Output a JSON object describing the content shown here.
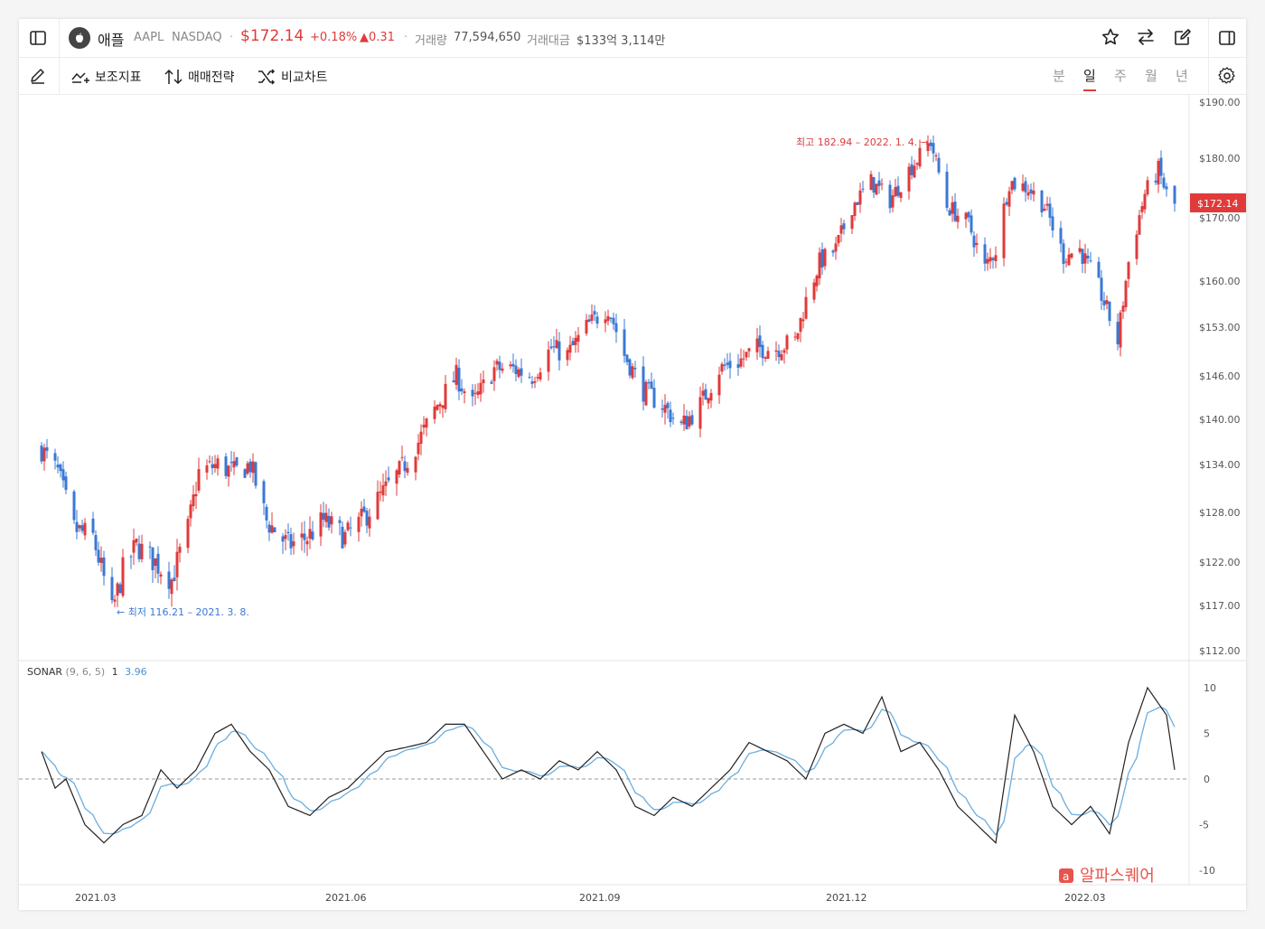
{
  "header": {
    "name": "애플",
    "ticker": "AAPL",
    "exchange": "NASDAQ",
    "price": "$172.14",
    "change_pct": "+0.18%",
    "change_abs": "▲0.31",
    "volume_label": "거래량",
    "volume": "77,594,650",
    "value_label": "거래대금",
    "value": "$133억 3,114만"
  },
  "toolbar": {
    "indicator_label": "보조지표",
    "strategy_label": "매매전략",
    "compare_label": "비교차트",
    "periods": [
      "분",
      "일",
      "주",
      "월",
      "년"
    ],
    "active_period": "일"
  },
  "price_axis": [
    "$190.00",
    "$180.00",
    "$170.00",
    "$160.00",
    "$153.00",
    "$146.00",
    "$140.00",
    "$134.00",
    "$128.00",
    "$122.00",
    "$117.00",
    "$112.00"
  ],
  "current_price_tag": "$172.14",
  "annotations": {
    "high": "최고 182.94 – 2022. 1. 4.",
    "low": "최저 116.21 – 2021. 3. 8."
  },
  "indicator": {
    "name": "SONAR",
    "params": "(9, 6, 5)",
    "value1": "1",
    "value2": "3.96",
    "axis": [
      "10",
      "5",
      "0",
      "-5",
      "-10"
    ]
  },
  "date_axis": [
    "2021.03",
    "2021.06",
    "2021.09",
    "2021.12",
    "2022.03"
  ],
  "watermark": "알파스퀘어",
  "colors": {
    "up": "#e03a3a",
    "down": "#3a78d4",
    "sonar": "#222222",
    "signal": "#6aaee0"
  },
  "chart_data": {
    "type": "candlestick",
    "price_ylim": [
      112,
      190
    ],
    "price_anchors": [
      [
        "2021-02-10",
        136
      ],
      [
        "2021-02-16",
        133
      ],
      [
        "2021-02-22",
        126
      ],
      [
        "2021-03-01",
        125
      ],
      [
        "2021-03-08",
        116.21
      ],
      [
        "2021-03-12",
        121
      ],
      [
        "2021-03-17",
        124
      ],
      [
        "2021-03-24",
        122
      ],
      [
        "2021-03-30",
        120
      ],
      [
        "2021-04-05",
        126
      ],
      [
        "2021-04-09",
        133
      ],
      [
        "2021-04-16",
        134
      ],
      [
        "2021-04-22",
        133
      ],
      [
        "2021-04-28",
        134
      ],
      [
        "2021-05-04",
        127
      ],
      [
        "2021-05-12",
        124
      ],
      [
        "2021-05-19",
        125
      ],
      [
        "2021-05-25",
        127
      ],
      [
        "2021-06-02",
        125
      ],
      [
        "2021-06-08",
        127
      ],
      [
        "2021-06-15",
        130
      ],
      [
        "2021-06-22",
        133
      ],
      [
        "2021-06-29",
        137
      ],
      [
        "2021-07-06",
        142
      ],
      [
        "2021-07-13",
        146
      ],
      [
        "2021-07-19",
        142
      ],
      [
        "2021-07-27",
        147
      ],
      [
        "2021-08-03",
        147
      ],
      [
        "2021-08-10",
        146
      ],
      [
        "2021-08-17",
        150
      ],
      [
        "2021-08-23",
        149
      ],
      [
        "2021-08-30",
        153
      ],
      [
        "2021-09-07",
        156
      ],
      [
        "2021-09-13",
        149
      ],
      [
        "2021-09-20",
        144
      ],
      [
        "2021-09-27",
        142
      ],
      [
        "2021-10-04",
        139
      ],
      [
        "2021-10-11",
        142
      ],
      [
        "2021-10-18",
        147
      ],
      [
        "2021-10-25",
        148
      ],
      [
        "2021-11-01",
        150
      ],
      [
        "2021-11-08",
        150
      ],
      [
        "2021-11-15",
        151
      ],
      [
        "2021-11-19",
        157
      ],
      [
        "2021-11-24",
        163
      ],
      [
        "2021-11-30",
        165
      ],
      [
        "2021-12-06",
        172
      ],
      [
        "2021-12-13",
        176
      ],
      [
        "2021-12-20",
        173
      ],
      [
        "2021-12-27",
        178
      ],
      [
        "2022-01-04",
        182.94
      ],
      [
        "2022-01-10",
        172
      ],
      [
        "2022-01-18",
        169
      ],
      [
        "2022-01-24",
        162
      ],
      [
        "2022-01-28",
        165
      ],
      [
        "2022-02-02",
        176
      ],
      [
        "2022-02-09",
        175
      ],
      [
        "2022-02-15",
        172
      ],
      [
        "2022-02-22",
        164
      ],
      [
        "2022-02-28",
        165
      ],
      [
        "2022-03-07",
        159
      ],
      [
        "2022-03-14",
        151
      ],
      [
        "2022-03-18",
        163
      ],
      [
        "2022-03-24",
        174
      ],
      [
        "2022-03-29",
        178
      ],
      [
        "2022-04-01",
        174
      ],
      [
        "2022-04-04",
        172.14
      ]
    ],
    "sonar_ylim": [
      -10,
      10
    ],
    "sonar_anchors": [
      [
        "2021-02-10",
        3
      ],
      [
        "2021-02-15",
        -1
      ],
      [
        "2021-02-19",
        0
      ],
      [
        "2021-02-26",
        -5
      ],
      [
        "2021-03-05",
        -7
      ],
      [
        "2021-03-12",
        -5
      ],
      [
        "2021-03-19",
        -4
      ],
      [
        "2021-03-26",
        1
      ],
      [
        "2021-04-01",
        -1
      ],
      [
        "2021-04-08",
        1
      ],
      [
        "2021-04-15",
        5
      ],
      [
        "2021-04-21",
        6
      ],
      [
        "2021-04-28",
        3
      ],
      [
        "2021-05-05",
        1
      ],
      [
        "2021-05-12",
        -3
      ],
      [
        "2021-05-20",
        -4
      ],
      [
        "2021-05-27",
        -2
      ],
      [
        "2021-06-03",
        -1
      ],
      [
        "2021-06-10",
        1
      ],
      [
        "2021-06-17",
        3
      ],
      [
        "2021-06-25",
        3.5
      ],
      [
        "2021-07-02",
        4
      ],
      [
        "2021-07-09",
        6
      ],
      [
        "2021-07-16",
        6
      ],
      [
        "2021-07-23",
        3
      ],
      [
        "2021-07-30",
        0
      ],
      [
        "2021-08-06",
        1
      ],
      [
        "2021-08-13",
        0
      ],
      [
        "2021-08-20",
        2
      ],
      [
        "2021-08-27",
        1
      ],
      [
        "2021-09-03",
        3
      ],
      [
        "2021-09-10",
        1
      ],
      [
        "2021-09-17",
        -3
      ],
      [
        "2021-09-24",
        -4
      ],
      [
        "2021-10-01",
        -2
      ],
      [
        "2021-10-08",
        -3
      ],
      [
        "2021-10-15",
        -1
      ],
      [
        "2021-10-22",
        1
      ],
      [
        "2021-10-29",
        4
      ],
      [
        "2021-11-05",
        3
      ],
      [
        "2021-11-12",
        2
      ],
      [
        "2021-11-19",
        0
      ],
      [
        "2021-11-26",
        5
      ],
      [
        "2021-12-03",
        6
      ],
      [
        "2021-12-10",
        5
      ],
      [
        "2021-12-17",
        9
      ],
      [
        "2021-12-24",
        3
      ],
      [
        "2021-12-31",
        4
      ],
      [
        "2022-01-07",
        1
      ],
      [
        "2022-01-14",
        -3
      ],
      [
        "2022-01-21",
        -5
      ],
      [
        "2022-01-28",
        -7
      ],
      [
        "2022-02-04",
        7
      ],
      [
        "2022-02-11",
        3
      ],
      [
        "2022-02-18",
        -3
      ],
      [
        "2022-02-25",
        -5
      ],
      [
        "2022-03-04",
        -3
      ],
      [
        "2022-03-11",
        -6
      ],
      [
        "2022-03-18",
        4
      ],
      [
        "2022-03-25",
        10
      ],
      [
        "2022-04-01",
        7
      ],
      [
        "2022-04-04",
        1
      ]
    ],
    "date_range": [
      "2021-02-10",
      "2022-04-04"
    ],
    "grid": false,
    "zero_line": "dashed"
  }
}
